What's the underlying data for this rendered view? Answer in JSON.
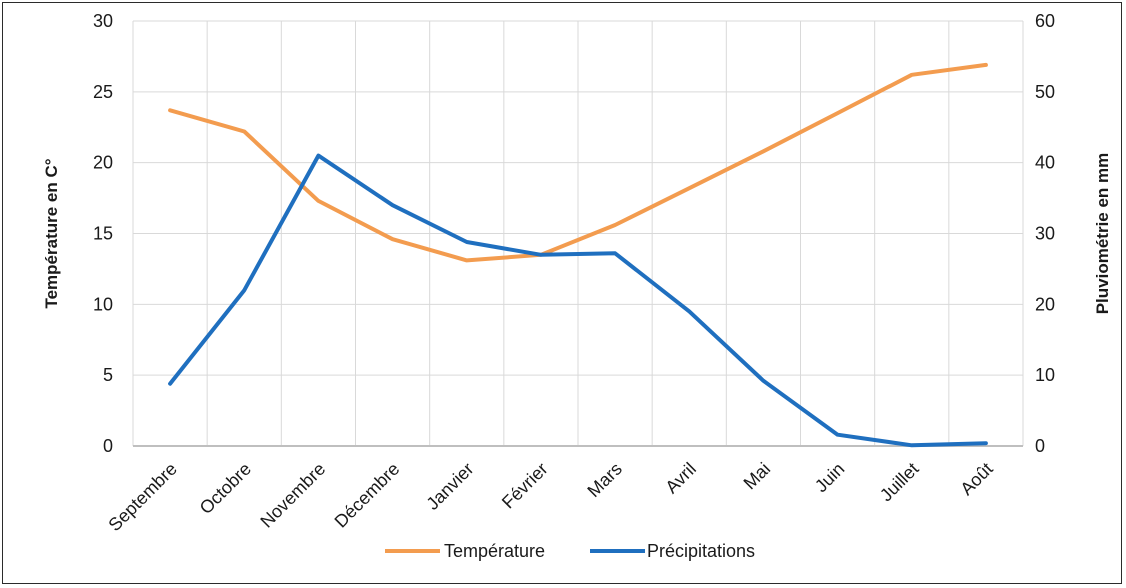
{
  "chart_data": {
    "type": "line",
    "title": "",
    "categories": [
      "Septembre",
      "Octobre",
      "Novembre",
      "Décembre",
      "Janvier",
      "Février",
      "Mars",
      "Avril",
      "Mai",
      "Juin",
      "Juillet",
      "Août"
    ],
    "ylabel_left": "Température en C°",
    "ylabel_right": "Pluviométrie en mm",
    "ylim_left": [
      0,
      30
    ],
    "ylim_right": [
      0,
      60
    ],
    "yticks_left": [
      0,
      5,
      10,
      15,
      20,
      25,
      30
    ],
    "yticks_right": [
      0,
      10,
      20,
      30,
      40,
      50,
      60
    ],
    "grid": true,
    "legend_position": "bottom",
    "series": [
      {
        "name": "Température",
        "axis": "left",
        "color": "#F39C4F",
        "values": [
          23.7,
          22.2,
          17.3,
          14.6,
          13.1,
          13.5,
          15.6,
          18.2,
          20.8,
          23.5,
          26.2,
          26.9
        ]
      },
      {
        "name": "Précipitations",
        "axis": "right",
        "color": "#1F6FBF",
        "values": [
          8.8,
          22.0,
          41.0,
          34.0,
          28.8,
          27.0,
          27.2,
          19.0,
          9.2,
          1.6,
          0.1,
          0.4
        ]
      }
    ]
  }
}
